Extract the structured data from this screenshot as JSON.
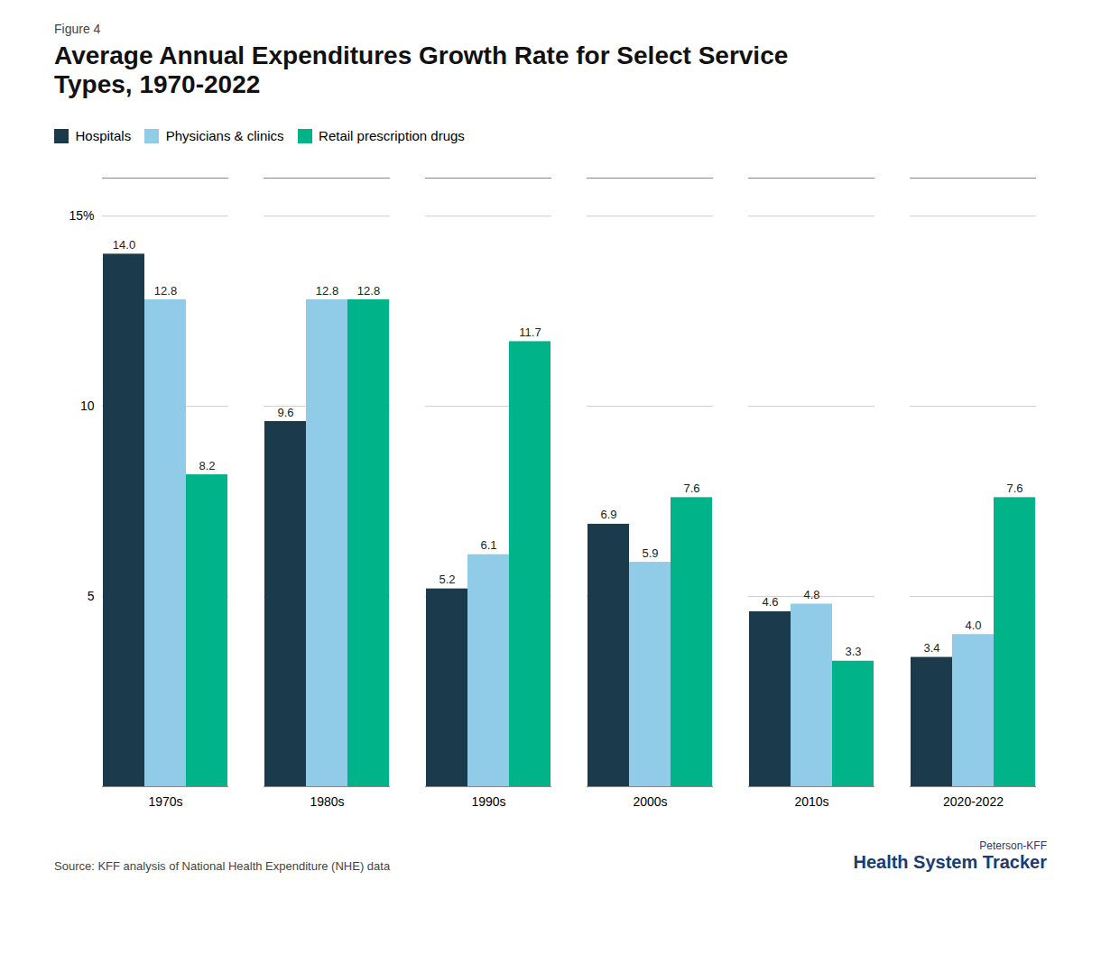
{
  "chart_data": {
    "type": "bar",
    "subtitle": "Figure 4",
    "title": "Average Annual Expenditures Growth Rate for Select Service\nTypes, 1970-2022",
    "categories": [
      "1970s",
      "1980s",
      "1990s",
      "2000s",
      "2010s",
      "2020-2022"
    ],
    "series": [
      {
        "name": "Hospitals",
        "color": "#1b3a4b",
        "values": [
          14.0,
          9.6,
          5.2,
          6.9,
          4.6,
          3.4
        ],
        "value_labels": [
          "14.0",
          "9.6",
          "5.2",
          "6.9",
          "4.6",
          "3.4"
        ]
      },
      {
        "name": "Physicians & clinics",
        "color": "#90cce8",
        "values": [
          12.8,
          12.8,
          6.1,
          5.9,
          4.8,
          4.0
        ],
        "value_labels": [
          "12.8",
          "12.8",
          "6.1",
          "5.9",
          "4.8",
          "4.0"
        ]
      },
      {
        "name": "Retail prescription drugs",
        "color": "#00b388",
        "values": [
          8.2,
          12.8,
          11.7,
          7.6,
          3.3,
          7.6
        ],
        "value_labels": [
          "8.2",
          "12.8",
          "11.7",
          "7.6",
          "3.3",
          "7.6"
        ]
      }
    ],
    "ylim": [
      0,
      16
    ],
    "yticks": [
      5,
      10,
      {
        "value": 15,
        "label": "15%"
      }
    ],
    "grid": true,
    "legend": "top",
    "data_labels": true,
    "annotations": [
      "Source: KFF analysis of National Health Expenditure (NHE) data",
      "Peterson-KFF",
      "Health System Tracker"
    ]
  }
}
